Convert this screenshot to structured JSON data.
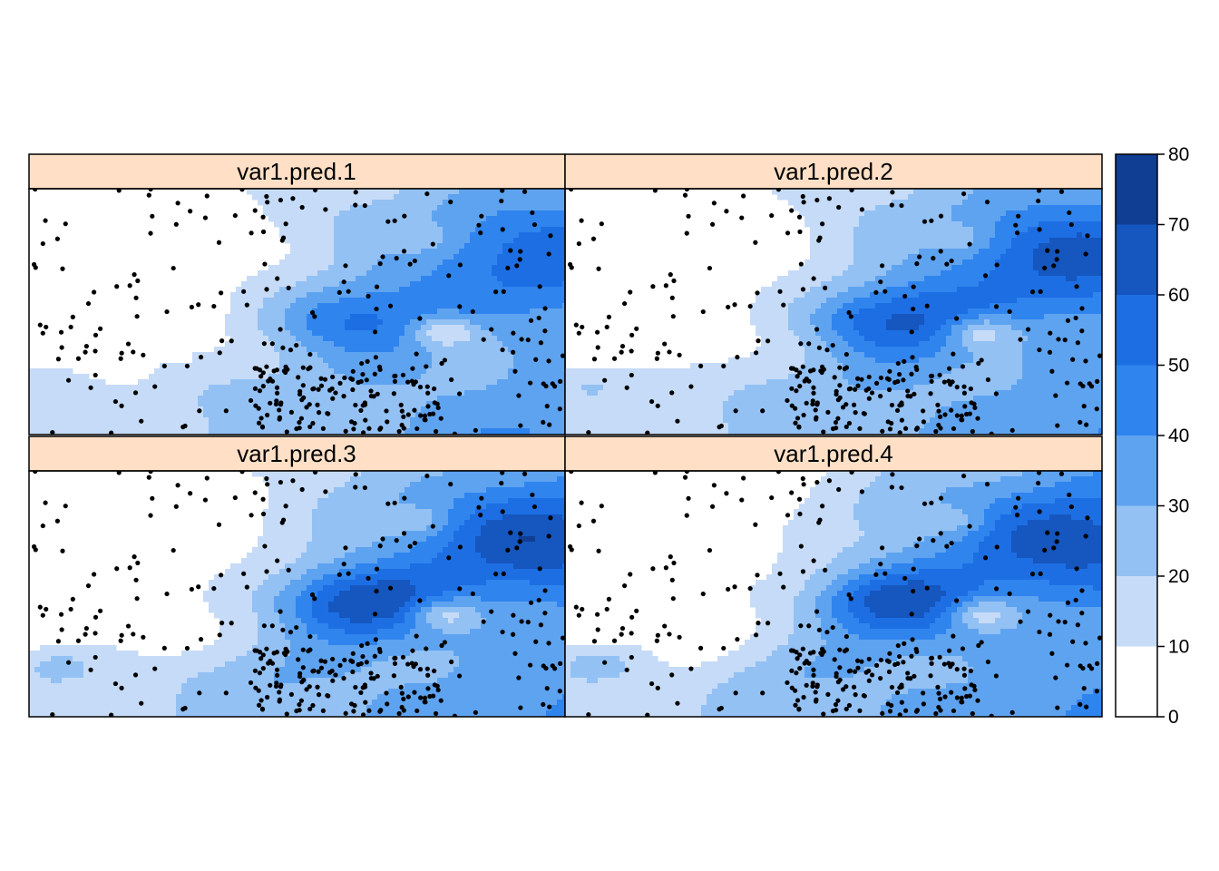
{
  "chart_data": {
    "type": "heatmap",
    "layout": "2x2 panels",
    "panels": [
      {
        "title": "var1.pred.1"
      },
      {
        "title": "var1.pred.2"
      },
      {
        "title": "var1.pred.3"
      },
      {
        "title": "var1.pred.4"
      }
    ],
    "colorkey": {
      "range": [
        0,
        80
      ],
      "breaks": [
        0,
        10,
        20,
        30,
        40,
        50,
        60,
        70,
        80
      ],
      "tick_labels": [
        "0",
        "10",
        "20",
        "30",
        "40",
        "50",
        "60",
        "70",
        "80"
      ],
      "colors": [
        "#ffffff",
        "#c6dbf7",
        "#93c1f4",
        "#5ea3f0",
        "#2f84ee",
        "#1d6ee3",
        "#1556bf",
        "#103e93"
      ],
      "placement": "right"
    },
    "strip_color": "#ffe0c6",
    "point_color": "#000000",
    "grid": false
  }
}
